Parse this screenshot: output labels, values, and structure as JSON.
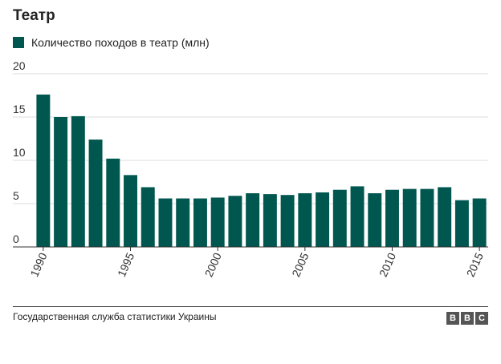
{
  "header": {
    "title": "Театр"
  },
  "legend": {
    "label": "Количество походов в театр (млн)",
    "color": "#00574f"
  },
  "chart_data": {
    "type": "bar",
    "title": "Театр",
    "xlabel": "",
    "ylabel": "",
    "ylim": [
      0,
      20
    ],
    "yticks": [
      0,
      5,
      10,
      15,
      20
    ],
    "xtick_labels": [
      "1990",
      "1995",
      "2000",
      "2005",
      "2010",
      "2015"
    ],
    "grid": true,
    "legend_position": "top-left",
    "color": "#00574f",
    "series": [
      {
        "name": "Количество походов в театр (млн)",
        "categories": [
          "1990",
          "1991",
          "1992",
          "1993",
          "1994",
          "1995",
          "1996",
          "1997",
          "1998",
          "1999",
          "2000",
          "2001",
          "2002",
          "2003",
          "2004",
          "2005",
          "2006",
          "2007",
          "2008",
          "2009",
          "2010",
          "2011",
          "2012",
          "2013",
          "2014",
          "2015"
        ],
        "values": [
          17.6,
          15.0,
          15.1,
          12.4,
          10.2,
          8.3,
          6.9,
          5.6,
          5.6,
          5.6,
          5.7,
          5.9,
          6.2,
          6.1,
          6.0,
          6.2,
          6.3,
          6.6,
          7.0,
          6.2,
          6.6,
          6.7,
          6.7,
          6.9,
          5.4,
          5.6
        ]
      }
    ]
  },
  "footer": {
    "source": "Государственная служба статистики Украины",
    "logo_letters": [
      "B",
      "B",
      "C"
    ]
  }
}
